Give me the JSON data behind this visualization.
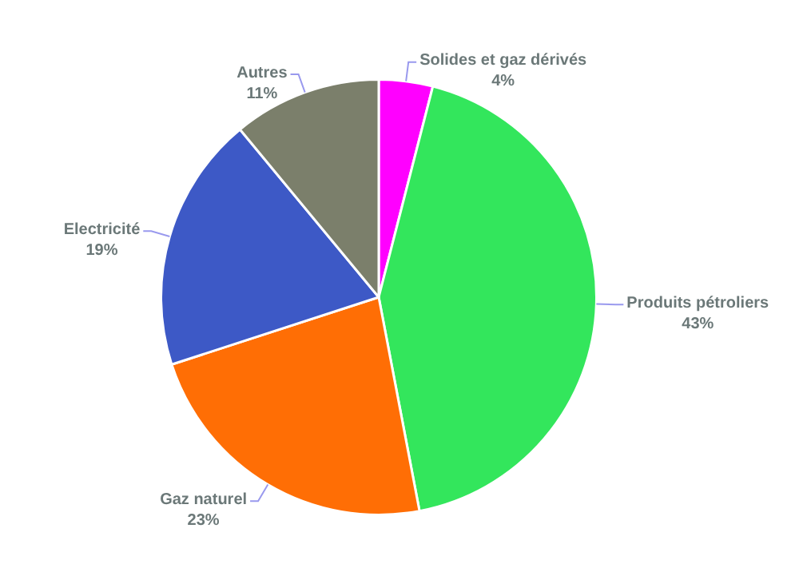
{
  "chart_data": {
    "type": "pie",
    "categories": [
      "Solides et gaz dérivés",
      "Produits pétroliers",
      "Gaz naturel",
      "Electricité",
      "Autres"
    ],
    "values": [
      4,
      43,
      23,
      19,
      11
    ],
    "colors": [
      "#ff00ff",
      "#33e65c",
      "#ff6e05",
      "#3d59c6",
      "#7b7f6b"
    ],
    "value_labels": [
      "4%",
      "43%",
      "23%",
      "19%",
      "11%"
    ],
    "legend": false
  }
}
